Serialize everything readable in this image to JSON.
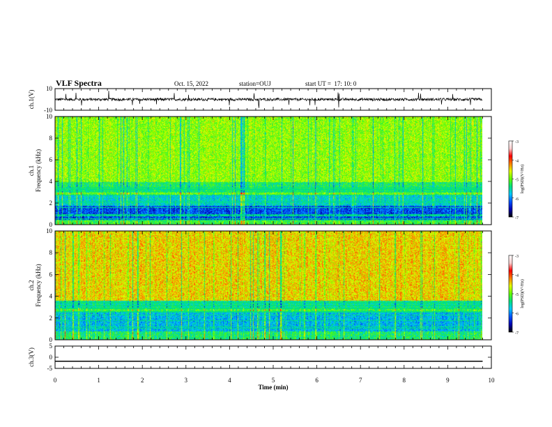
{
  "header": {
    "title": "VLF Spectra",
    "date": "Oct. 15, 2022",
    "station": "station=OUJ",
    "start": "start UT =  17: 10: 0"
  },
  "colors": {
    "colormap": [
      "#000000",
      "#0000b0",
      "#0050ff",
      "#00c8ff",
      "#00e080",
      "#60ff00",
      "#e0ff00",
      "#ff8000",
      "#ff0000",
      "#ffd0d0",
      "#ffffff"
    ]
  },
  "chart_data": [
    {
      "type": "line",
      "id": "ch1-waveform",
      "ylabel": "ch.1(V)",
      "xlim": [
        0,
        10
      ],
      "ylim": [
        -10,
        10
      ],
      "yticks": [
        "10",
        "-10"
      ],
      "x_end": 9.8,
      "baseline": 0,
      "description_values": {
        "typical_amplitude": 2.5,
        "spike_amplitude": 8
      }
    },
    {
      "type": "heatmap",
      "id": "ch1-spectrogram",
      "ylabel": "ch.1\nFrequency (kHz)",
      "ylabel_line1": "ch.1",
      "ylabel_line2": "Frequency (kHz)",
      "xlim": [
        0,
        10
      ],
      "ylim": [
        0,
        10
      ],
      "yticks": [
        "0",
        "2",
        "4",
        "6",
        "8",
        "10"
      ],
      "x_end": 9.8,
      "colorbar": {
        "label": "log(PSD)(V²/Hz)",
        "range": [
          -7,
          -3
        ],
        "ticks": [
          "-3",
          "-4",
          "-5",
          "-6",
          "-7"
        ]
      },
      "bands": [
        {
          "f_from": 0,
          "f_to": 0.5,
          "level": -5.2
        },
        {
          "f_from": 0.5,
          "f_to": 1.8,
          "level": -6.6
        },
        {
          "f_from": 1.8,
          "f_to": 2.8,
          "level": -5.8
        },
        {
          "f_from": 2.8,
          "f_to": 4.0,
          "level": -5.0
        },
        {
          "f_from": 4.0,
          "f_to": 10,
          "level": -4.4
        }
      ]
    },
    {
      "type": "heatmap",
      "id": "ch2-spectrogram",
      "ylabel": "ch.2\nFrequency (kHz)",
      "ylabel_line1": "ch.2",
      "ylabel_line2": "Frequency (kHz)",
      "xlim": [
        0,
        10
      ],
      "ylim": [
        0,
        10
      ],
      "yticks": [
        "0",
        "2",
        "4",
        "6",
        "8",
        "10"
      ],
      "x_end": 9.8,
      "colorbar": {
        "label": "log(PSD)(V²/Hz)",
        "range": [
          -7,
          -3
        ],
        "ticks": [
          "-3",
          "-4",
          "-5",
          "-6",
          "-7"
        ]
      },
      "bands": [
        {
          "f_from": 0,
          "f_to": 0.8,
          "level": -5.4
        },
        {
          "f_from": 0.8,
          "f_to": 2.6,
          "level": -6.0
        },
        {
          "f_from": 2.6,
          "f_to": 3.6,
          "level": -5.2
        },
        {
          "f_from": 3.6,
          "f_to": 10,
          "level": -3.9
        }
      ]
    },
    {
      "type": "line",
      "id": "ch3-waveform",
      "ylabel": "ch.3(V)",
      "xlim": [
        0,
        10
      ],
      "ylim": [
        -5,
        5
      ],
      "yticks": [
        "5",
        "0",
        "-5"
      ],
      "x_end": 9.8,
      "constant_value": -1.8
    }
  ],
  "xaxis": {
    "label": "Time (min)",
    "ticks": [
      "0",
      "1",
      "2",
      "3",
      "4",
      "5",
      "6",
      "7",
      "8",
      "9",
      "10"
    ]
  }
}
